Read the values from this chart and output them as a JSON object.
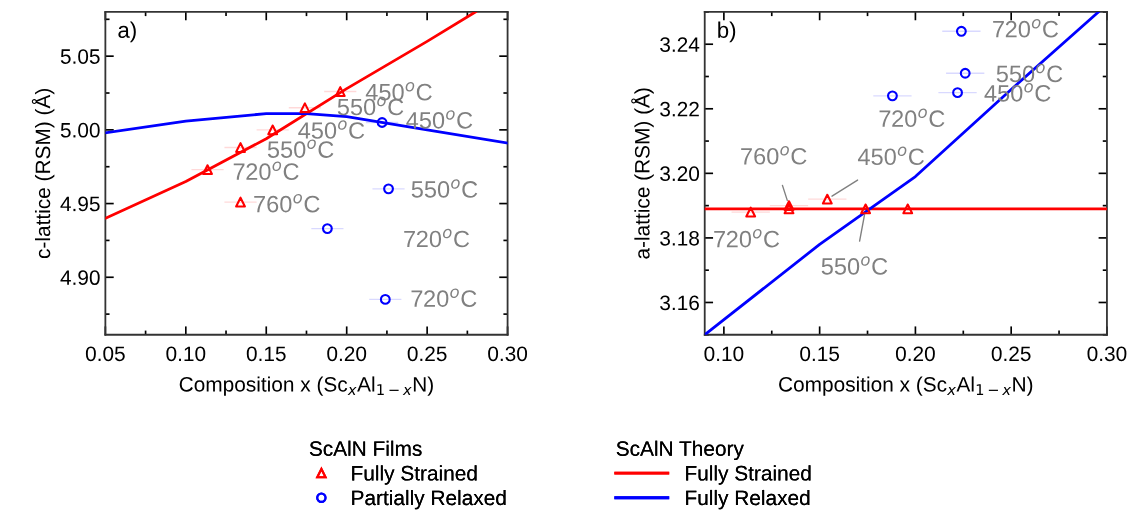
{
  "chart_data": [
    {
      "type": "scatter",
      "title": "a)",
      "xlabel": "Composition x (Sc$_{x}$Al$_{1−x}$N)",
      "ylabel": "c-lattice (RSM) (Å)",
      "xlim": [
        0.05,
        0.3
      ],
      "xticks": [
        {
          "value": 0.05,
          "label": "0.05"
        },
        {
          "value": 0.1,
          "label": "0.10"
        },
        {
          "value": 0.15,
          "label": "0.15"
        },
        {
          "value": 0.2,
          "label": "0.20"
        },
        {
          "value": 0.25,
          "label": "0.25"
        },
        {
          "value": 0.3,
          "label": "0.30"
        }
      ],
      "ylim": [
        4.861,
        5.08
      ],
      "yticks": [
        {
          "value": 4.9,
          "label": "4.90"
        },
        {
          "value": 4.95,
          "label": "4.95"
        },
        {
          "value": 5.0,
          "label": "5.00"
        },
        {
          "value": 5.05,
          "label": "5.05"
        }
      ],
      "grid": false,
      "legend": "bottom",
      "legend_title": [
        "ScAlN Films",
        "ScAlN Theory"
      ],
      "series": [
        {
          "name": "Fully Strained",
          "marker": "triangle",
          "color": "#ff0000",
          "x": [
            0.1135,
            0.134,
            0.154,
            0.174,
            0.196,
            0.134
          ],
          "values": [
            4.973,
            4.988,
            5.0,
            5.015,
            5.026,
            4.951
          ],
          "xerrors": [
            0.01,
            0.01,
            0.01,
            0.01,
            0.01,
            0.01
          ]
        },
        {
          "name": "Partially Relaxed",
          "marker": "circle",
          "color": "#0000ff",
          "x": [
            0.222,
            0.226,
            0.188,
            0.224
          ],
          "values": [
            5.005,
            4.96,
            4.933,
            4.885
          ],
          "xerrors": [
            0.01,
            0.01,
            0.01,
            0.01
          ]
        },
        {
          "name": "Fully Strained",
          "type": "line",
          "color": "#ff0000",
          "x": [
            0.05,
            0.1,
            0.15,
            0.2,
            0.25,
            0.28
          ],
          "values": [
            4.94,
            4.965,
            4.994,
            5.028,
            5.06,
            5.08
          ]
        },
        {
          "name": "Fully Relaxed",
          "type": "line",
          "color": "#0000ff",
          "x": [
            0.05,
            0.1,
            0.15,
            0.175,
            0.2,
            0.25,
            0.3
          ],
          "values": [
            4.998,
            5.006,
            5.011,
            5.011,
            5.009,
            5.0,
            4.991
          ]
        }
      ],
      "annotations": [
        {
          "text": "720$^{o}$C",
          "x": 0.1135,
          "y": 4.973
        },
        {
          "text": "550$^{o}$C",
          "x": 0.134,
          "y": 4.988
        },
        {
          "text": "450$^{o}$C",
          "x": 0.154,
          "y": 5.0
        },
        {
          "text": "550$^{o}$C",
          "x": 0.174,
          "y": 5.015
        },
        {
          "text": "450$^{o}$C",
          "x": 0.196,
          "y": 5.026
        },
        {
          "text": "760$^{o}$C",
          "x": 0.134,
          "y": 4.951
        },
        {
          "text": "450$^{o}$C",
          "x": 0.222,
          "y": 5.005
        },
        {
          "text": "550$^{o}$C",
          "x": 0.226,
          "y": 4.96
        },
        "720$^{o}$C",
        {
          "text": "720$^{o}$C",
          "x": 0.224,
          "y": 4.885
        }
      ]
    },
    {
      "type": "scatter",
      "title": "b)",
      "xlabel": "Composition x (Sc$_{x}$Al$_{1−x}$N)",
      "ylabel": "a-lattice (RSM) (Å)",
      "xlim": [
        0.09,
        0.3
      ],
      "xticks": [
        {
          "value": 0.1,
          "label": "0.10"
        },
        {
          "value": 0.15,
          "label": "0.15"
        },
        {
          "value": 0.2,
          "label": "0.20"
        },
        {
          "value": 0.25,
          "label": "0.25"
        },
        {
          "value": 0.3,
          "label": "0.30"
        }
      ],
      "ylim": [
        3.15,
        3.25
      ],
      "yticks": [
        3.16,
        3.18,
        {
          "value": 3.2,
          "label": "3.20"
        },
        3.22,
        3.24
      ],
      "grid": false,
      "legend": "bottom",
      "series": [
        {
          "name": "Fully Strained",
          "marker": "triangle",
          "color": "#ff0000",
          "x": [
            0.114,
            0.134,
            0.154,
            0.134,
            0.174,
            0.196
          ],
          "values": [
            3.188,
            3.19,
            3.192,
            3.189,
            3.189,
            3.189
          ],
          "xerrors": [
            0.01,
            0.01,
            0.01,
            0.01,
            0.01,
            0.01
          ]
        },
        {
          "name": "Partially Relaxed",
          "marker": "circle",
          "color": "#0000ff",
          "x": [
            0.224,
            0.226,
            0.222,
            0.188
          ],
          "values": [
            3.244,
            3.231,
            3.225,
            3.224
          ],
          "xerrors": [
            0.01,
            0.01,
            0.01,
            0.01
          ]
        },
        {
          "name": "Fully Strained",
          "type": "line",
          "color": "#ff0000",
          "x": [
            0.09,
            0.3
          ],
          "values": [
            3.189,
            3.189
          ]
        },
        {
          "name": "Fully Relaxed",
          "type": "line",
          "color": "#0000ff",
          "x": [
            0.09,
            0.15,
            0.2,
            0.25,
            0.2956
          ],
          "values": [
            3.15,
            3.178,
            3.199,
            3.226,
            3.25
          ]
        }
      ],
      "annotations": [
        {
          "text": "720$^{o}$C",
          "x": 0.224,
          "y": 3.244
        },
        {
          "text": "550$^{o}$C",
          "x": 0.226,
          "y": 3.231
        },
        {
          "text": "450$^{o}$C",
          "x": 0.222,
          "y": 3.225
        },
        {
          "text": "720$^{o}$C",
          "x": 0.188,
          "y": 3.224
        },
        {
          "text": "720$^{o}$C",
          "x": 0.114,
          "y": 3.188
        },
        {
          "text": "760$^{o}$C",
          "x": 0.134,
          "y": 3.19
        },
        {
          "text": "450$^{o}$C",
          "x": 0.154,
          "y": 3.192
        },
        {
          "text": "550$^{o}$C",
          "x": 0.174,
          "y": 3.189
        }
      ]
    }
  ]
}
